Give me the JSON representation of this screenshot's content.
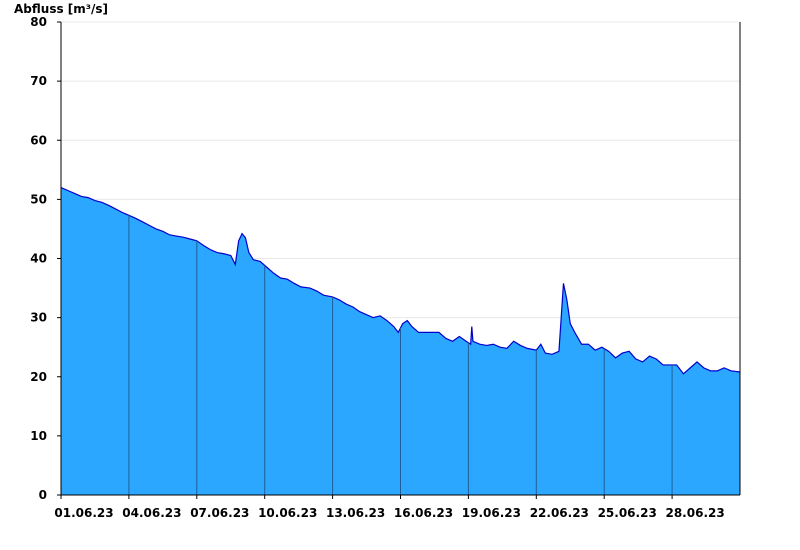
{
  "chart_data": {
    "type": "area",
    "ylabel": "Abfluss [m³/s]",
    "ylim": [
      0,
      80
    ],
    "y_ticks": [
      0,
      10,
      20,
      30,
      40,
      50,
      60,
      70,
      80
    ],
    "x_tick_labels": [
      "01.06.23",
      "04.06.23",
      "07.06.23",
      "10.06.23",
      "13.06.23",
      "16.06.23",
      "19.06.23",
      "22.06.23",
      "25.06.23",
      "28.06.23"
    ],
    "x_range_days": [
      1,
      31
    ],
    "grid": "horizontal",
    "colors": {
      "fill": "#2ba7ff",
      "line": "#0000cc",
      "separator": "#1f5f99",
      "grid": "#e8e8e8"
    },
    "series": [
      {
        "values": [
          [
            1.0,
            52.0
          ],
          [
            1.3,
            51.5
          ],
          [
            1.6,
            51.0
          ],
          [
            1.9,
            50.5
          ],
          [
            2.2,
            50.3
          ],
          [
            2.5,
            49.8
          ],
          [
            2.8,
            49.5
          ],
          [
            3.1,
            49.0
          ],
          [
            3.4,
            48.4
          ],
          [
            3.7,
            47.8
          ],
          [
            4.0,
            47.3
          ],
          [
            4.3,
            46.8
          ],
          [
            4.6,
            46.2
          ],
          [
            4.9,
            45.6
          ],
          [
            5.2,
            45.0
          ],
          [
            5.5,
            44.6
          ],
          [
            5.8,
            44.0
          ],
          [
            6.1,
            43.8
          ],
          [
            6.4,
            43.6
          ],
          [
            6.7,
            43.3
          ],
          [
            7.0,
            43.0
          ],
          [
            7.3,
            42.2
          ],
          [
            7.6,
            41.5
          ],
          [
            7.9,
            41.0
          ],
          [
            8.2,
            40.8
          ],
          [
            8.5,
            40.5
          ],
          [
            8.7,
            39.0
          ],
          [
            8.85,
            43.0
          ],
          [
            9.0,
            44.2
          ],
          [
            9.15,
            43.5
          ],
          [
            9.3,
            41.0
          ],
          [
            9.5,
            39.8
          ],
          [
            9.8,
            39.5
          ],
          [
            10.1,
            38.5
          ],
          [
            10.4,
            37.5
          ],
          [
            10.7,
            36.7
          ],
          [
            11.0,
            36.5
          ],
          [
            11.3,
            35.8
          ],
          [
            11.6,
            35.2
          ],
          [
            12.0,
            35.0
          ],
          [
            12.3,
            34.5
          ],
          [
            12.6,
            33.8
          ],
          [
            13.0,
            33.5
          ],
          [
            13.3,
            33.0
          ],
          [
            13.6,
            32.3
          ],
          [
            13.9,
            31.8
          ],
          [
            14.2,
            31.0
          ],
          [
            14.5,
            30.5
          ],
          [
            14.8,
            30.0
          ],
          [
            15.1,
            30.3
          ],
          [
            15.4,
            29.5
          ],
          [
            15.7,
            28.5
          ],
          [
            15.9,
            27.5
          ],
          [
            16.1,
            29.0
          ],
          [
            16.3,
            29.5
          ],
          [
            16.5,
            28.5
          ],
          [
            16.8,
            27.5
          ],
          [
            17.1,
            27.5
          ],
          [
            17.4,
            27.5
          ],
          [
            17.7,
            27.5
          ],
          [
            18.0,
            26.5
          ],
          [
            18.3,
            26.0
          ],
          [
            18.6,
            26.8
          ],
          [
            18.9,
            26.0
          ],
          [
            19.1,
            25.5
          ],
          [
            19.15,
            28.5
          ],
          [
            19.2,
            26.0
          ],
          [
            19.5,
            25.5
          ],
          [
            19.8,
            25.3
          ],
          [
            20.1,
            25.5
          ],
          [
            20.4,
            25.0
          ],
          [
            20.7,
            24.8
          ],
          [
            21.0,
            26.0
          ],
          [
            21.3,
            25.3
          ],
          [
            21.6,
            24.8
          ],
          [
            22.0,
            24.5
          ],
          [
            22.2,
            25.5
          ],
          [
            22.4,
            24.0
          ],
          [
            22.7,
            23.8
          ],
          [
            23.0,
            24.3
          ],
          [
            23.1,
            30.0
          ],
          [
            23.2,
            35.8
          ],
          [
            23.35,
            33.0
          ],
          [
            23.5,
            29.0
          ],
          [
            23.7,
            27.5
          ],
          [
            24.0,
            25.5
          ],
          [
            24.3,
            25.5
          ],
          [
            24.6,
            24.5
          ],
          [
            24.9,
            25.0
          ],
          [
            25.2,
            24.3
          ],
          [
            25.5,
            23.2
          ],
          [
            25.8,
            24.0
          ],
          [
            26.1,
            24.3
          ],
          [
            26.4,
            23.0
          ],
          [
            26.7,
            22.5
          ],
          [
            27.0,
            23.5
          ],
          [
            27.3,
            23.0
          ],
          [
            27.6,
            22.0
          ],
          [
            27.9,
            22.0
          ],
          [
            28.2,
            22.0
          ],
          [
            28.5,
            20.5
          ],
          [
            28.8,
            21.5
          ],
          [
            29.1,
            22.5
          ],
          [
            29.4,
            21.5
          ],
          [
            29.7,
            21.0
          ],
          [
            30.0,
            21.0
          ],
          [
            30.3,
            21.5
          ],
          [
            30.6,
            21.0
          ],
          [
            31.0,
            20.8
          ]
        ]
      }
    ]
  }
}
